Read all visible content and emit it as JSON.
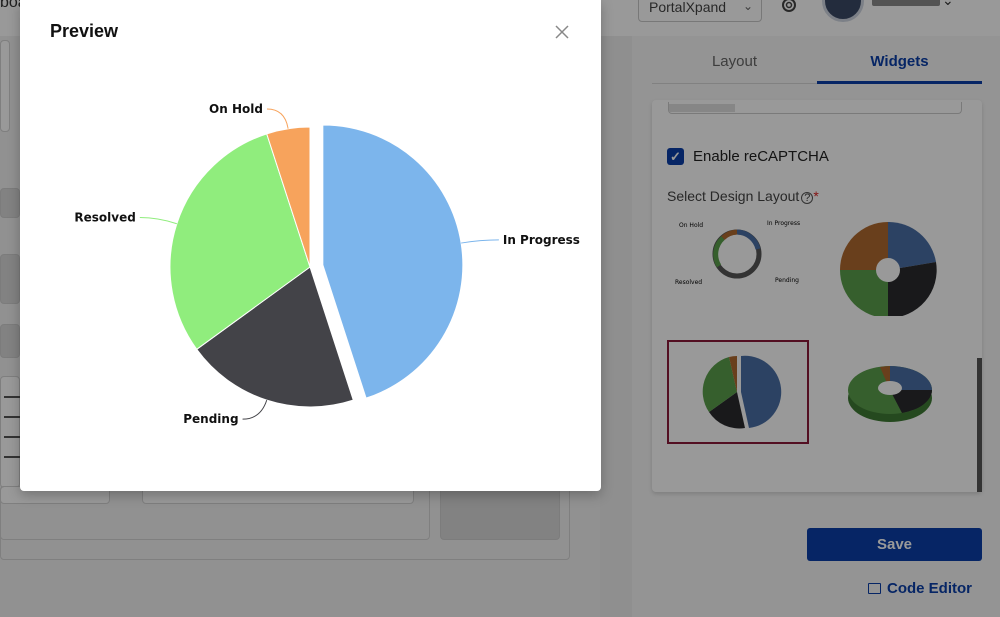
{
  "header": {
    "breadcrumb": "boa",
    "portal_select": "PortalXpand",
    "user_chevron": "⌄"
  },
  "right_panel": {
    "tabs": [
      {
        "label": "Layout",
        "active": false
      },
      {
        "label": "Widgets",
        "active": true
      }
    ],
    "captcha_label": "Enable reCAPTCHA",
    "captcha_checked": true,
    "layout_label": "Select Design Layout",
    "layout_help": "?",
    "layout_required": "*",
    "layout_options": [
      {
        "name": "ring"
      },
      {
        "name": "donut-exploded"
      },
      {
        "name": "pie-exploded",
        "selected": true
      },
      {
        "name": "donut-3d"
      }
    ],
    "thumbnail_labels": {
      "on_hold": "On Hold",
      "in_progress": "In Progress",
      "resolved": "Resolved",
      "pending": "Pending"
    },
    "save_label": "Save",
    "code_editor_label": "Code Editor"
  },
  "modal": {
    "title": "Preview",
    "close_icon": "close-icon"
  },
  "chart_data": {
    "type": "pie",
    "title": "",
    "exploded_slice": "In Progress",
    "slices": [
      {
        "label": "In Progress",
        "value": 45,
        "color": "#7cb5ec"
      },
      {
        "label": "Pending",
        "value": 20,
        "color": "#434348"
      },
      {
        "label": "Resolved",
        "value": 30,
        "color": "#90ed7d"
      },
      {
        "label": "On Hold",
        "value": 5,
        "color": "#f7a35c"
      }
    ]
  },
  "colors": {
    "accent": "#0a3fa8",
    "selected_border": "#8b1a3a"
  }
}
